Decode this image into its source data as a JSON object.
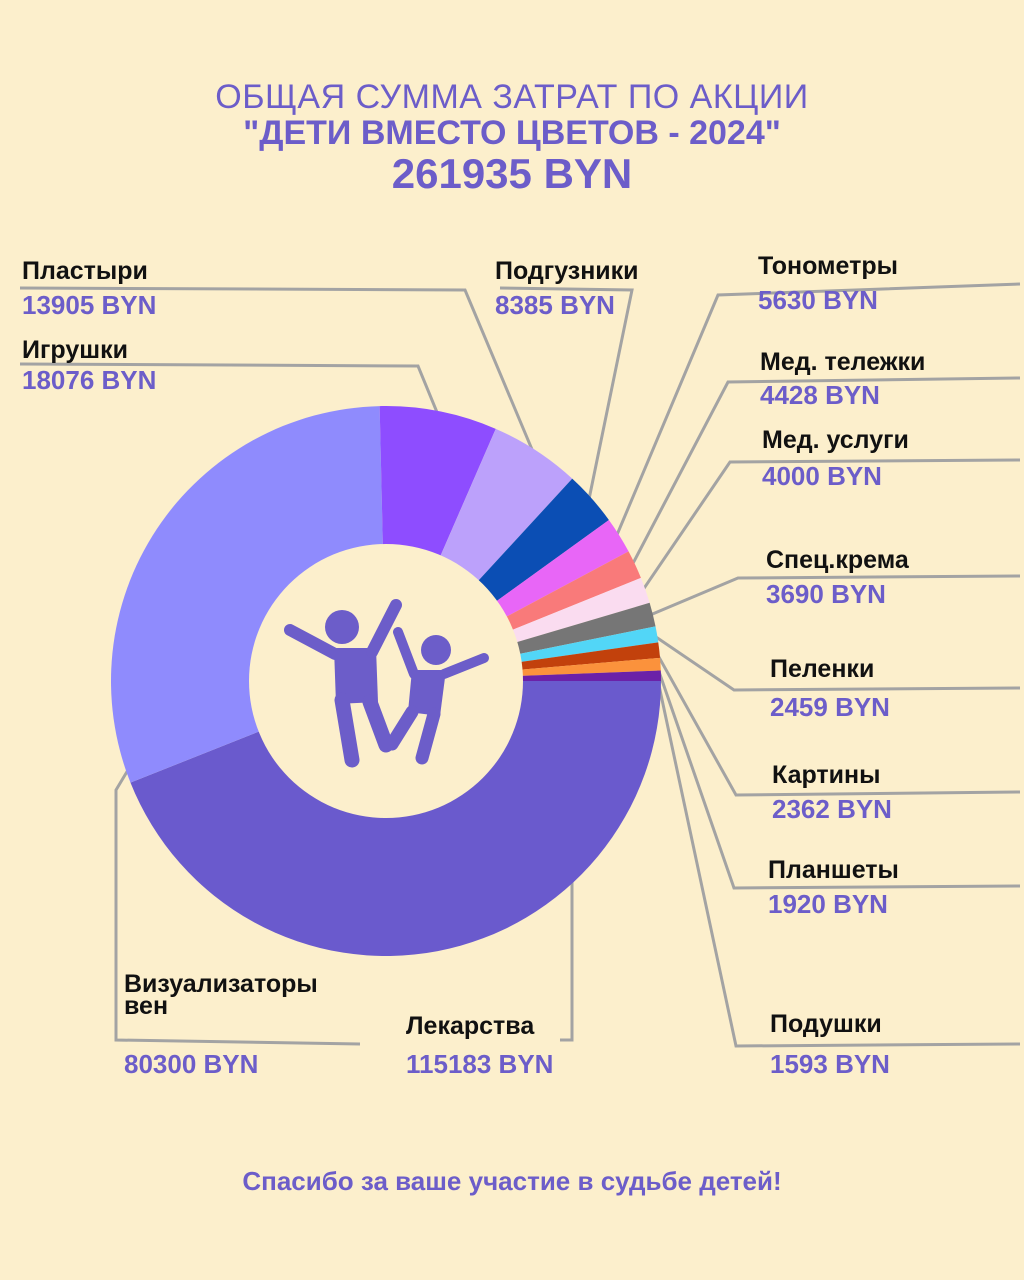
{
  "title": {
    "line1": "ОБЩАЯ СУММА ЗАТРАТ ПО АКЦИИ",
    "line2": "\"ДЕТИ ВМЕСТО ЦВЕТОВ - 2024\"",
    "total": "261935 BYN"
  },
  "footer": "Спасибо за ваше участие в судьбе детей!",
  "center_icon": "children-jumping-icon",
  "chart_data": {
    "type": "pie",
    "title": "ОБЩАЯ СУММА ЗАТРАТ ПО АКЦИИ \"ДЕТИ ВМЕСТО ЦВЕТОВ - 2024\"",
    "total": 261935,
    "unit": "BYN",
    "slices": [
      {
        "name": "Лекарства",
        "value": 115183,
        "value_label": "115183 BYN",
        "color": "#6a5acd"
      },
      {
        "name": "Визуализаторы\nвен",
        "value": 80300,
        "value_label": "80300 BYN",
        "color": "#8f8bfd"
      },
      {
        "name": "Игрушки",
        "value": 18076,
        "value_label": "18076 BYN",
        "color": "#8e4dff"
      },
      {
        "name": "Пластыри",
        "value": 13905,
        "value_label": "13905 BYN",
        "color": "#bca1fb"
      },
      {
        "name": "Подгузники",
        "value": 8385,
        "value_label": "8385 BYN",
        "color": "#0b4eb4"
      },
      {
        "name": "Тонометры",
        "value": 5630,
        "value_label": "5630 BYN",
        "color": "#e866f7"
      },
      {
        "name": "Мед. тележки",
        "value": 4428,
        "value_label": "4428 BYN",
        "color": "#f97a7a"
      },
      {
        "name": "Мед. услуги",
        "value": 4000,
        "value_label": "4000 BYN",
        "color": "#fadcf0"
      },
      {
        "name": "Спец.крема",
        "value": 3690,
        "value_label": "3690 BYN",
        "color": "#767676"
      },
      {
        "name": "Пеленки",
        "value": 2459,
        "value_label": "2459 BYN",
        "color": "#52d6f7"
      },
      {
        "name": "Картины",
        "value": 2362,
        "value_label": "2362 BYN",
        "color": "#c2410c"
      },
      {
        "name": "Планшеты",
        "value": 1920,
        "value_label": "1920 BYN",
        "color": "#fb923c"
      },
      {
        "name": "Подушки",
        "value": 1593,
        "value_label": "1593 BYN",
        "color": "#6b21a8"
      }
    ]
  }
}
